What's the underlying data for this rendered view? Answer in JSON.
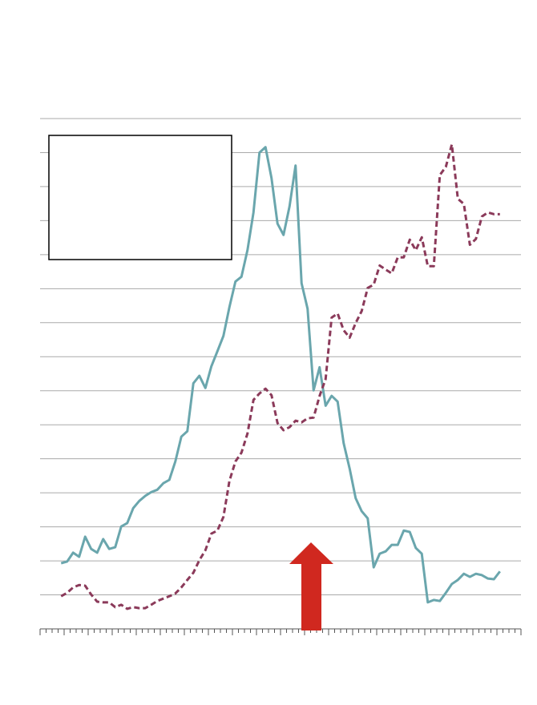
{
  "chart_data": {
    "type": "line",
    "x": [
      3.5,
      4.5,
      5.5,
      6.5,
      7.5,
      8.5,
      9.5,
      10.5,
      11.5,
      12.5,
      13.5,
      14.5,
      15.5,
      16.5,
      17.5,
      18.5,
      19.5,
      20.5,
      21.5,
      22.5,
      23.5,
      24.5,
      25.5,
      26.5,
      27.5,
      28.5,
      29.5,
      30.5,
      31.5,
      32.5,
      33.5,
      34.5,
      35.5,
      36.5,
      37.5,
      38.5,
      39.5,
      40.5,
      41.5,
      42.5,
      43.5,
      44.5,
      45.5,
      46.5,
      47.5,
      48.5,
      49.5,
      50.5,
      51.5,
      52.5,
      53.5,
      54.5,
      55.5,
      56.5,
      57.5,
      58.5,
      59.5,
      60.5,
      61.5,
      62.5,
      63.5,
      64.5,
      65.5,
      66.5,
      67.5,
      68.5,
      69.5,
      70.5,
      71.5,
      72.5,
      73.5,
      74.5,
      75.5,
      76.5
    ],
    "series": [
      {
        "color": "#6aa6ad",
        "dashed": false,
        "values": [
          1.93,
          1.98,
          2.24,
          2.12,
          2.71,
          2.35,
          2.24,
          2.64,
          2.35,
          2.4,
          3.01,
          3.11,
          3.55,
          3.76,
          3.91,
          4.02,
          4.09,
          4.28,
          4.38,
          4.92,
          5.65,
          5.81,
          7.22,
          7.44,
          7.08,
          7.72,
          8.16,
          8.61,
          9.46,
          10.21,
          10.35,
          11.13,
          12.24,
          14.0,
          14.16,
          13.25,
          11.91,
          11.58,
          12.42,
          13.62,
          10.16,
          9.41,
          7.01,
          7.69,
          6.56,
          6.85,
          6.68,
          5.46,
          4.71,
          3.84,
          3.46,
          3.25,
          1.81,
          2.21,
          2.28,
          2.47,
          2.47,
          2.89,
          2.85,
          2.38,
          2.21,
          0.78,
          0.85,
          0.82,
          1.06,
          1.32,
          1.44,
          1.62,
          1.53,
          1.62,
          1.58,
          1.48,
          1.46,
          1.69
        ]
      },
      {
        "color": "#8b3a5a",
        "dashed": true,
        "values": [
          0.96,
          1.06,
          1.22,
          1.29,
          1.27,
          1.01,
          0.8,
          0.78,
          0.78,
          0.64,
          0.71,
          0.59,
          0.64,
          0.61,
          0.61,
          0.71,
          0.82,
          0.89,
          0.96,
          1.04,
          1.22,
          1.44,
          1.65,
          2.02,
          2.31,
          2.8,
          2.89,
          3.29,
          4.35,
          4.92,
          5.18,
          5.74,
          6.73,
          6.92,
          7.06,
          6.87,
          6.05,
          5.84,
          5.93,
          6.12,
          6.07,
          6.19,
          6.21,
          6.85,
          7.34,
          9.15,
          9.27,
          8.78,
          8.56,
          8.99,
          9.34,
          10.02,
          10.12,
          10.68,
          10.56,
          10.45,
          10.92,
          10.92,
          11.44,
          11.13,
          11.51,
          10.66,
          10.66,
          13.34,
          13.58,
          14.24,
          12.64,
          12.49,
          11.29,
          11.46,
          12.12,
          12.24,
          12.19,
          12.19
        ]
      }
    ],
    "xlim": [
      0,
      80
    ],
    "xticks": [
      0,
      1,
      2,
      3,
      4,
      5,
      6,
      7,
      8,
      9,
      10,
      11,
      12,
      13,
      14,
      15,
      16,
      17,
      18,
      19,
      20,
      21,
      22,
      23,
      24,
      25,
      26,
      27,
      28,
      29,
      30,
      31,
      32,
      33,
      34,
      35,
      36,
      37,
      38,
      39,
      40,
      41,
      42,
      43,
      44,
      45,
      46,
      47,
      48,
      49,
      50,
      51,
      52,
      53,
      54,
      55,
      56,
      57,
      58,
      59,
      60,
      61,
      62,
      63,
      64,
      65,
      66,
      67,
      68,
      69,
      70,
      71,
      72,
      73,
      74,
      75,
      76,
      77,
      78,
      79,
      80
    ],
    "ylim": [
      0,
      15
    ],
    "yticks": [
      0,
      1,
      2,
      3,
      4,
      5,
      6,
      7,
      8,
      9,
      10,
      11,
      12,
      13,
      14,
      15
    ],
    "grid": true
  }
}
